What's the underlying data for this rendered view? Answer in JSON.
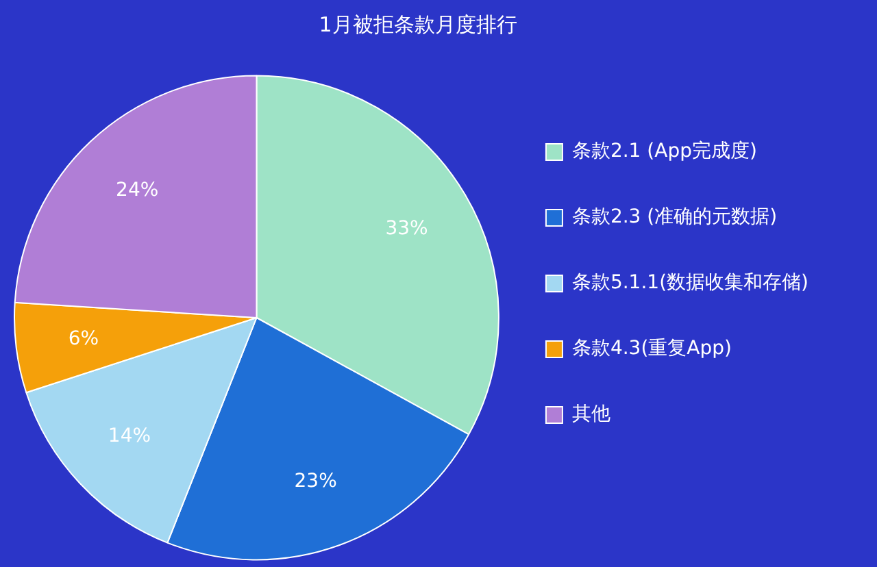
{
  "chart_data": {
    "type": "pie",
    "title": "1月被拒条款月度排行",
    "categories": [
      "条款2.1 (App完成度)",
      "条款2.3 (准确的元数据)",
      "条款5.1.1(数据收集和存储)",
      "条款4.3(重复App)",
      "其他"
    ],
    "values": [
      33,
      23,
      14,
      6,
      24
    ],
    "colors": [
      "#9ee3c6",
      "#1f6fd6",
      "#a3d8f2",
      "#f5a00a",
      "#b07ed6"
    ],
    "value_labels": [
      "33%",
      "23%",
      "14%",
      "6%",
      "24%"
    ],
    "legend": "right"
  }
}
